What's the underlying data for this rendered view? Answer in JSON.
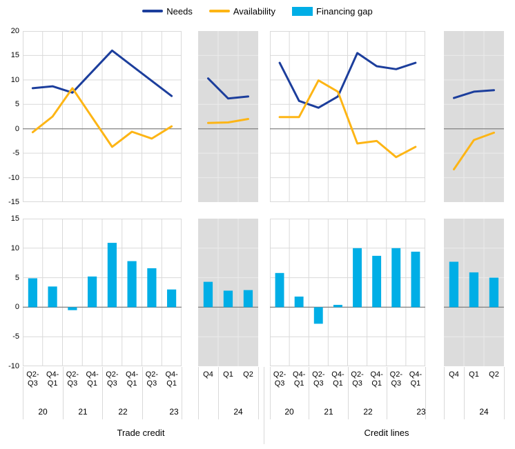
{
  "legend": {
    "items": [
      {
        "label": "Needs",
        "swatch": "line",
        "color": "#1c3e9c"
      },
      {
        "label": "Availability",
        "swatch": "line",
        "color": "#fdb515"
      },
      {
        "label": "Financing gap",
        "swatch": "rect",
        "color": "#00aee6"
      }
    ]
  },
  "groups": [
    {
      "title": "Trade credit"
    },
    {
      "title": "Credit lines"
    }
  ],
  "colors": {
    "needs": "#1c3e9c",
    "availability": "#fdb515",
    "financing_gap": "#00aee6",
    "forecast_bg": "#dcdcdc",
    "grid": "#d9d9d9",
    "grid_on_gray": "#ebebeb",
    "zero_line": "#808080"
  },
  "chart_data": [
    {
      "id": "trade-credit-needs-availability",
      "type": "line",
      "group": "Trade credit",
      "position": "top-left",
      "ylim": [
        -15,
        20
      ],
      "yticks": [
        20,
        15,
        10,
        5,
        0,
        -5,
        -10,
        -15
      ],
      "grid": true,
      "legend_position": "top-center",
      "categories": [
        "Q2-Q3",
        "Q4-Q1",
        "Q2-Q3",
        "Q4-Q1",
        "Q2-Q3",
        "Q4-Q1",
        "Q2-Q3",
        "Q4-Q1"
      ],
      "category_years": [
        "20",
        "21",
        "22",
        "23"
      ],
      "forecast_categories": [
        "Q4",
        "Q1",
        "Q2"
      ],
      "forecast_year": "24",
      "series": [
        {
          "name": "Needs",
          "color": "#1c3e9c",
          "values": [
            8.3,
            8.7,
            7.4,
            11.7,
            16.0,
            12.9,
            9.8,
            6.7
          ],
          "forecast_values": [
            10.3,
            6.2,
            6.6
          ]
        },
        {
          "name": "Availability",
          "color": "#fdb515",
          "values": [
            -0.7,
            2.5,
            8.3,
            2.3,
            -3.7,
            -0.6,
            -2.0,
            0.5
          ],
          "forecast_values": [
            1.2,
            1.3,
            2.0
          ]
        }
      ]
    },
    {
      "id": "credit-lines-needs-availability",
      "type": "line",
      "group": "Credit lines",
      "position": "top-right",
      "ylim": [
        -15,
        20
      ],
      "yticks": [
        20,
        15,
        10,
        5,
        0,
        -5,
        -10,
        -15
      ],
      "grid": true,
      "categories": [
        "Q2-Q3",
        "Q4-Q1",
        "Q2-Q3",
        "Q4-Q1",
        "Q2-Q3",
        "Q4-Q1",
        "Q2-Q3",
        "Q4-Q1"
      ],
      "category_years": [
        "20",
        "21",
        "22",
        "23"
      ],
      "forecast_categories": [
        "Q4",
        "Q1",
        "Q2"
      ],
      "forecast_year": "24",
      "series": [
        {
          "name": "Needs",
          "color": "#1c3e9c",
          "values": [
            13.5,
            5.7,
            4.3,
            6.6,
            15.5,
            12.8,
            12.2,
            13.5
          ],
          "forecast_values": [
            6.3,
            7.6,
            7.9
          ]
        },
        {
          "name": "Availability",
          "color": "#fdb515",
          "values": [
            2.4,
            2.4,
            9.9,
            7.6,
            -3.0,
            -2.5,
            -5.8,
            -3.7
          ],
          "forecast_values": [
            -8.3,
            -2.3,
            -0.8
          ]
        }
      ]
    },
    {
      "id": "trade-credit-financing-gap",
      "type": "bar",
      "group": "Trade credit",
      "position": "bottom-left",
      "ylim": [
        -10,
        15
      ],
      "yticks": [
        15,
        10,
        5,
        0,
        -5,
        -10
      ],
      "grid": true,
      "categories": [
        "Q2-Q3",
        "Q4-Q1",
        "Q2-Q3",
        "Q4-Q1",
        "Q2-Q3",
        "Q4-Q1",
        "Q2-Q3",
        "Q4-Q1"
      ],
      "category_years": [
        "20",
        "21",
        "22",
        "23"
      ],
      "forecast_categories": [
        "Q4",
        "Q1",
        "Q2"
      ],
      "forecast_year": "24",
      "series": [
        {
          "name": "Financing gap",
          "color": "#00aee6",
          "values": [
            4.9,
            3.5,
            -0.5,
            5.2,
            10.9,
            7.8,
            6.6,
            3.0
          ],
          "forecast_values": [
            4.3,
            2.8,
            2.9
          ]
        }
      ]
    },
    {
      "id": "credit-lines-financing-gap",
      "type": "bar",
      "group": "Credit lines",
      "position": "bottom-right",
      "ylim": [
        -10,
        15
      ],
      "yticks": [
        15,
        10,
        5,
        0,
        -5,
        -10
      ],
      "grid": true,
      "categories": [
        "Q2-Q3",
        "Q4-Q1",
        "Q2-Q3",
        "Q4-Q1",
        "Q2-Q3",
        "Q4-Q1",
        "Q2-Q3",
        "Q4-Q1"
      ],
      "category_years": [
        "20",
        "21",
        "22",
        "23"
      ],
      "forecast_categories": [
        "Q4",
        "Q1",
        "Q2"
      ],
      "forecast_year": "24",
      "series": [
        {
          "name": "Financing gap",
          "color": "#00aee6",
          "values": [
            5.8,
            1.8,
            -2.8,
            0.4,
            10.0,
            8.7,
            10.0,
            9.4
          ],
          "forecast_values": [
            7.7,
            5.9,
            5.0
          ]
        }
      ]
    }
  ]
}
